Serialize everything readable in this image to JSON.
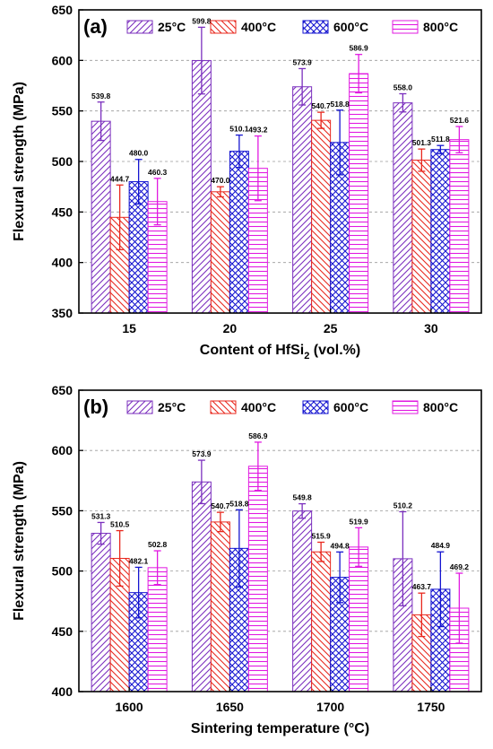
{
  "chart_data": [
    {
      "type": "bar",
      "panel_label": "(a)",
      "xlabel": "Content of HfSi",
      "xlabel_sub": "2",
      "xlabel_suffix": " (vol.%)",
      "ylabel": "Flexural strength (MPa)",
      "ylim": [
        350,
        650
      ],
      "yticks": [
        "350",
        "400",
        "450",
        "500",
        "550",
        "600",
        "650"
      ],
      "grid": "horizontal dashed",
      "legend_position": "top, inside",
      "categories": [
        "15",
        "20",
        "25",
        "30"
      ],
      "series": [
        {
          "name": "25°C",
          "color": "#7b2fbe",
          "pattern": "diag-right",
          "values": [
            539.8,
            599.8,
            573.9,
            558.0
          ],
          "labels": [
            "539.8",
            "599.8",
            "573.9",
            "558.0"
          ],
          "errors": [
            19,
            33,
            18,
            9
          ]
        },
        {
          "name": "400°C",
          "color": "#e8281e",
          "pattern": "diag-left",
          "values": [
            444.7,
            470.0,
            540.7,
            501.3
          ],
          "labels": [
            "444.7",
            "470.0",
            "540.7",
            "501.3"
          ],
          "errors": [
            32,
            5,
            8,
            11
          ]
        },
        {
          "name": "600°C",
          "color": "#1515d0",
          "pattern": "cross",
          "values": [
            480.0,
            510.1,
            518.8,
            511.8
          ],
          "labels": [
            "480.0",
            "510.1",
            "518.8",
            "511.8"
          ],
          "errors": [
            22,
            16,
            32,
            4
          ]
        },
        {
          "name": "800°C",
          "color": "#e11ae1",
          "pattern": "horizontal",
          "values": [
            460.3,
            493.2,
            586.9,
            521.6
          ],
          "labels": [
            "460.3",
            "493.2",
            "586.9",
            "521.6"
          ],
          "errors": [
            23,
            32,
            19,
            13
          ]
        }
      ]
    },
    {
      "type": "bar",
      "panel_label": "(b)",
      "xlabel": "Sintering temperature (°C)",
      "xlabel_sub": "",
      "xlabel_suffix": "",
      "ylabel": "Flexural strength (MPa)",
      "ylim": [
        400,
        650
      ],
      "yticks": [
        "400",
        "450",
        "500",
        "550",
        "600",
        "650"
      ],
      "grid": "horizontal dashed",
      "legend_position": "top, inside",
      "categories": [
        "1600",
        "1650",
        "1700",
        "1750"
      ],
      "series": [
        {
          "name": "25°C",
          "color": "#7b2fbe",
          "pattern": "diag-right",
          "values": [
            531.3,
            573.9,
            549.8,
            510.2
          ],
          "labels": [
            "531.3",
            "573.9",
            "549.8",
            "510.2"
          ],
          "errors": [
            9,
            18,
            6,
            39
          ]
        },
        {
          "name": "400°C",
          "color": "#e8281e",
          "pattern": "diag-left",
          "values": [
            510.5,
            540.7,
            515.9,
            463.7
          ],
          "labels": [
            "510.5",
            "540.7",
            "515.9",
            "463.7"
          ],
          "errors": [
            23,
            8,
            8,
            18
          ]
        },
        {
          "name": "600°C",
          "color": "#1515d0",
          "pattern": "cross",
          "values": [
            482.1,
            518.8,
            494.8,
            484.9
          ],
          "labels": [
            "482.1",
            "518.8",
            "494.8",
            "484.9"
          ],
          "errors": [
            21,
            32,
            21,
            31
          ]
        },
        {
          "name": "800°C",
          "color": "#e11ae1",
          "pattern": "horizontal",
          "values": [
            502.8,
            586.9,
            519.9,
            469.2
          ],
          "labels": [
            "502.8",
            "586.9",
            "519.9",
            "469.2"
          ],
          "errors": [
            14,
            20,
            16,
            29
          ]
        }
      ]
    }
  ]
}
